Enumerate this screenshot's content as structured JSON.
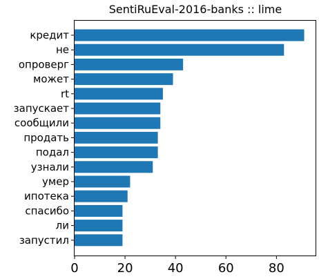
{
  "chart_data": {
    "type": "bar",
    "orientation": "horizontal",
    "title": "SentiRuEval-2016-banks :: lime",
    "xlabel": "",
    "ylabel": "",
    "categories": [
      "кредит",
      "не",
      "опроверг",
      "может",
      "rt",
      "запускает",
      "сообщили",
      "продать",
      "подал",
      "узнали",
      "умер",
      "ипотека",
      "спасибо",
      "ли",
      "запустил"
    ],
    "values": [
      91,
      83,
      43,
      39,
      35,
      34,
      34,
      33,
      33,
      31,
      22,
      21,
      19,
      19,
      19
    ],
    "xlim": [
      0,
      95.5
    ],
    "xticks": [
      0,
      20,
      40,
      60,
      80
    ],
    "bar_color": "#1f77b4",
    "grid": false
  }
}
